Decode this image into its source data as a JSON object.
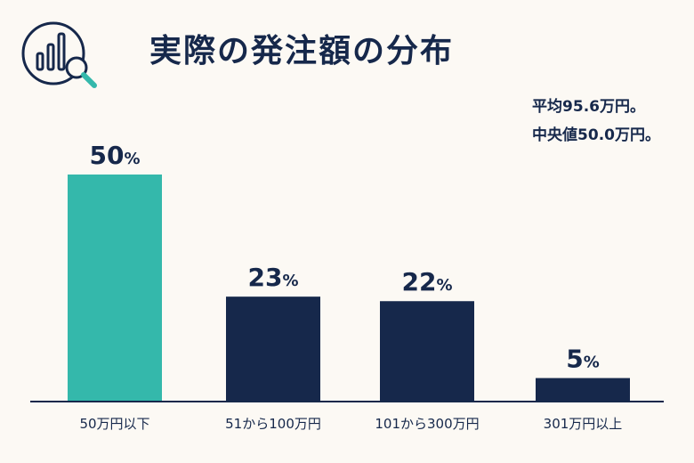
{
  "title": "実際の発注額の分布",
  "stats": {
    "average": "平均95.6万円。",
    "median": "中央値50.0万円。"
  },
  "colors": {
    "highlight": "#34b8ab",
    "bar": "#16284b",
    "text": "#16284b",
    "background": "#fcf9f4"
  },
  "chart_data": {
    "type": "bar",
    "categories": [
      "50万円以下",
      "51から100万円",
      "101から300万円",
      "301万円以上"
    ],
    "values": [
      50,
      23,
      22,
      5
    ],
    "value_labels": [
      "50",
      "23",
      "22",
      "5"
    ],
    "unit": "%",
    "highlight_index": 0,
    "ylim": [
      0,
      50
    ],
    "grid": false,
    "legend": "none"
  }
}
